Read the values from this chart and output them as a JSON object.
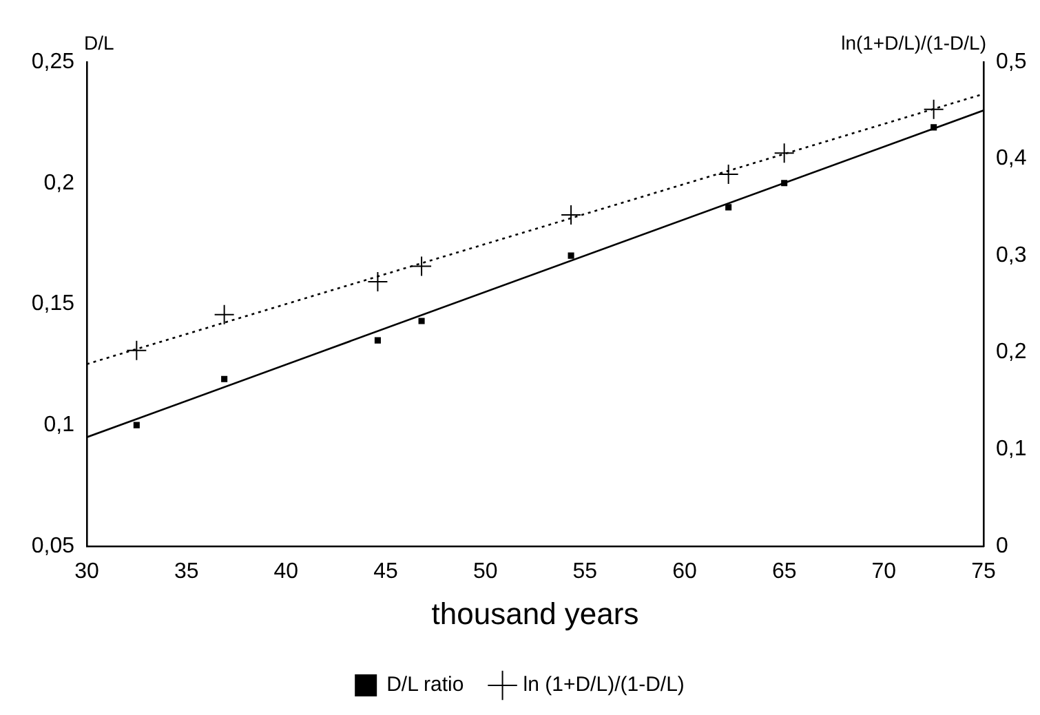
{
  "chart_data": {
    "type": "scatter",
    "xlabel": "thousand years",
    "ylabel": "D/L",
    "y2label": "ln(1+D/L)/(1-D/L)",
    "legend": "bottom",
    "grid": false,
    "xlim": [
      30,
      75
    ],
    "xticks": [
      30,
      35,
      40,
      45,
      50,
      55,
      60,
      65,
      70,
      75
    ],
    "ylim": [
      0.05,
      0.25
    ],
    "yticks": [
      {
        "value": 0.05,
        "label": "0,05"
      },
      {
        "value": 0.1,
        "label": "0,1"
      },
      {
        "value": 0.15,
        "label": "0,15"
      },
      {
        "value": 0.2,
        "label": "0,2"
      },
      {
        "value": 0.25,
        "label": "0,25"
      }
    ],
    "y2lim": [
      0,
      0.5
    ],
    "y2ticks": [
      0,
      {
        "value": 0.1,
        "label": "0,1"
      },
      {
        "value": 0.2,
        "label": "0,2"
      },
      {
        "value": 0.3,
        "label": "0,3"
      },
      {
        "value": 0.4,
        "label": "0,4"
      },
      {
        "value": 0.5,
        "label": "0,5"
      }
    ],
    "series": [
      {
        "name": "D/L ratio",
        "color": "#000000",
        "marker": "square",
        "x": [
          32.5,
          36.9,
          44.6,
          46.8,
          54.3,
          62.2,
          65.0,
          72.5
        ],
        "values": [
          0.1,
          0.119,
          0.135,
          0.143,
          0.17,
          0.19,
          0.2,
          0.223
        ]
      },
      {
        "name": "ln (1+D/L)/(1-D/L)",
        "axis": "y2",
        "color": "#000000",
        "marker": "cross",
        "x": [
          32.5,
          36.9,
          44.6,
          46.8,
          54.3,
          62.2,
          65.0,
          72.5
        ],
        "values": [
          0.202,
          0.239,
          0.273,
          0.289,
          0.342,
          0.384,
          0.406,
          0.451
        ]
      },
      {
        "type": "line",
        "color": "#000000",
        "marker": "none",
        "line_style": "solid",
        "x": [
          30,
          75
        ],
        "values": [
          0.095,
          0.23
        ]
      },
      {
        "type": "line",
        "axis": "y2",
        "color": "#000000",
        "marker": "none",
        "line_style": "dotted",
        "x": [
          30,
          75
        ],
        "values": [
          0.188,
          0.467
        ]
      }
    ]
  }
}
